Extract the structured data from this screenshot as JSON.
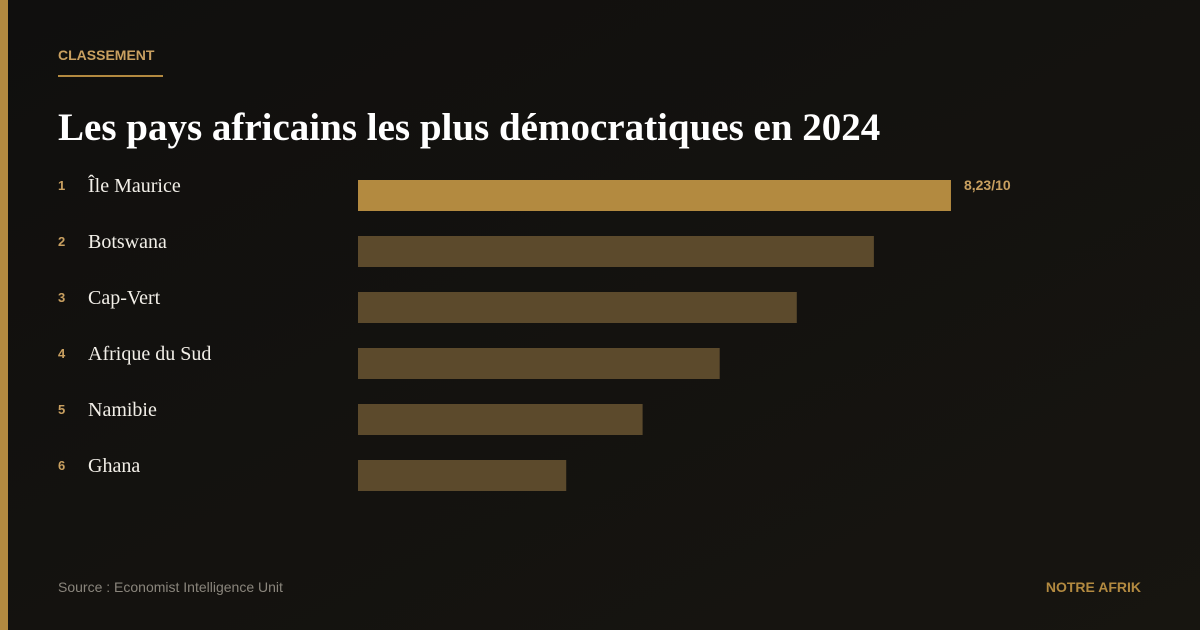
{
  "kicker": "CLASSEMENT",
  "chart_data": {
    "type": "bar",
    "orientation": "horizontal",
    "title": "Les pays africains les plus démocratiques en 2024",
    "ranks": [
      1,
      2,
      3,
      4,
      5,
      6
    ],
    "categories": [
      "Île Maurice",
      "Botswana",
      "Cap-Vert",
      "Afrique du Sud",
      "Namibie",
      "Ghana"
    ],
    "values": [
      8.23,
      7.16,
      6.09,
      5.02,
      3.95,
      2.89
    ],
    "value_labels": [
      "8,23/10",
      null,
      null,
      null,
      null,
      null
    ],
    "colors": [
      "#b38a40",
      "#5c4a2c",
      "#5c4a2c",
      "#5c4a2c",
      "#5c4a2c",
      "#5c4a2c"
    ],
    "xlim": [
      0,
      10
    ]
  },
  "source": "Source : Economist Intelligence Unit",
  "brand": "NOTRE AFRIK"
}
